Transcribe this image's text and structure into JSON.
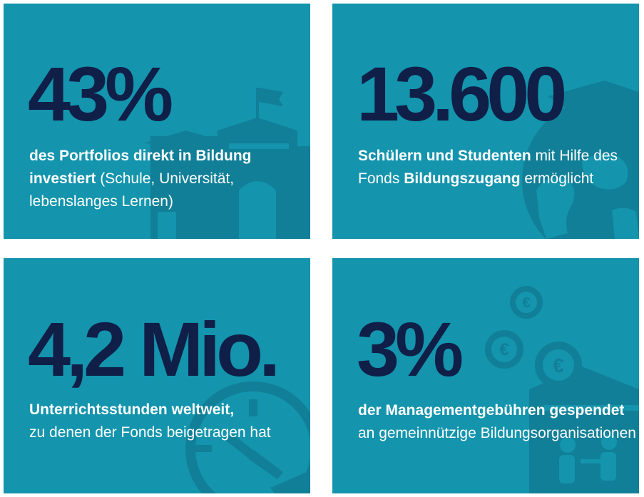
{
  "colors": {
    "tile": "#1494ad",
    "art": "#117f97",
    "figure": "#0f1f48",
    "text": "#ffffff"
  },
  "tiles": [
    {
      "big": "43%",
      "caption_bold": "des Portfolios direkt in Bildung investiert",
      "caption_rest": " (Schule, Universität, lebenslanges Lernen)",
      "icon": "school-building-icon"
    },
    {
      "big": "13.600",
      "caption_bold": "Schülern und Studenten",
      "caption_mid": " mit Hilfe des Fonds ",
      "caption_bold2": "Bildungszugang",
      "caption_rest": " ermöglicht",
      "icon": "globe-graduation-cap-icon"
    },
    {
      "big": "4,2 Mio.",
      "caption_bold": "Unterrichtsstunden weltweit,",
      "caption_rest": "zu denen der Fonds beigetragen hat",
      "icon": "clock-book-icon"
    },
    {
      "big": "3%",
      "caption_bold": "der Managementgebühren gespendet",
      "caption_rest": " an gemeinnützige Bildungsorganisationen",
      "icon": "euro-coins-classroom-icon",
      "coin_symbol": "€"
    }
  ]
}
